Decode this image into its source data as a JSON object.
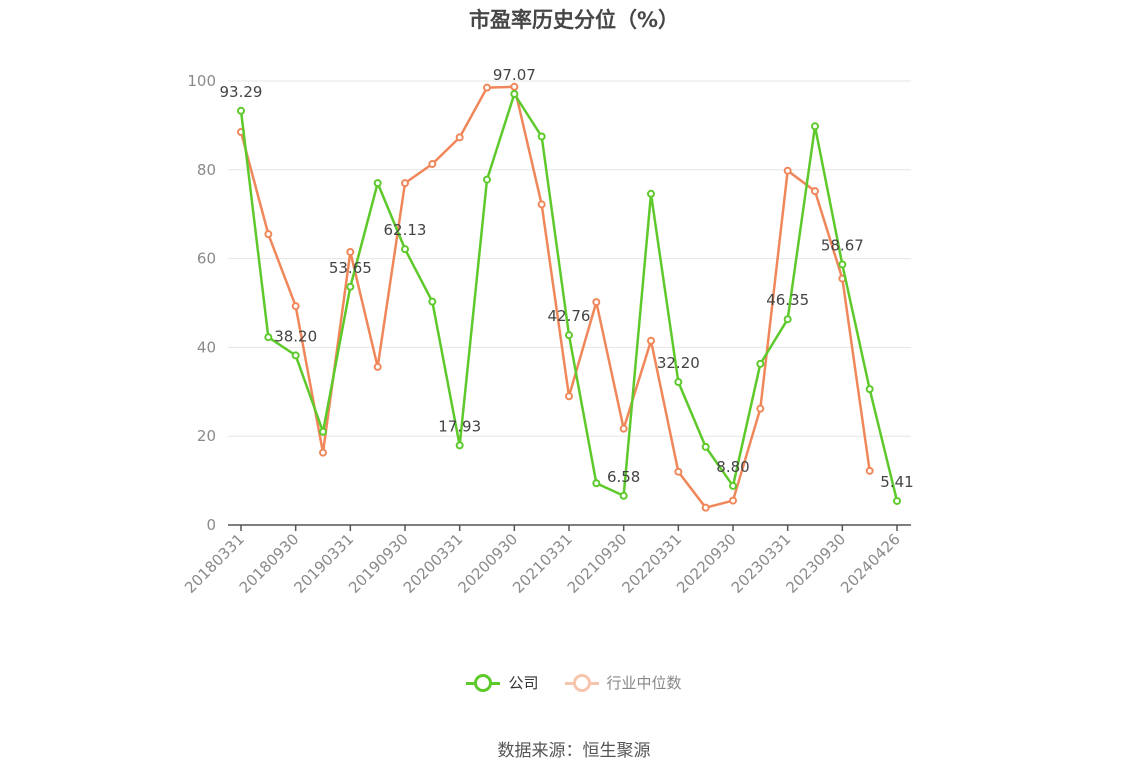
{
  "title": "市盈率历史分位（%）",
  "source": "数据来源：恒生聚源",
  "legend": {
    "company": "公司",
    "industry": "行业中位数"
  },
  "colors": {
    "company": "#5ec92b",
    "industry": "#f0875a",
    "company_legend_text": "#333333",
    "industry_legend_text": "#888888",
    "grid": "#e6e6e6",
    "axis": "#555555",
    "tick_text": "#8a8a8a"
  },
  "chart_data": {
    "type": "line",
    "title": "市盈率历史分位（%）",
    "ylim": [
      0,
      100
    ],
    "yticks": [
      "0",
      "20",
      "40",
      "60",
      "80",
      "100"
    ],
    "xtick_labels": [
      "20180331",
      "20180930",
      "20190331",
      "20190930",
      "20200331",
      "20200930",
      "20210331",
      "20210930",
      "20220331",
      "20220930",
      "20230331",
      "20230930",
      "20240426"
    ],
    "x": [
      "20180331",
      "20180630",
      "20180930",
      "20181231",
      "20190331",
      "20190630",
      "20190930",
      "20191231",
      "20200331",
      "20200630",
      "20200930",
      "20201231",
      "20210331",
      "20210630",
      "20210930",
      "20211231",
      "20220331",
      "20220630",
      "20220930",
      "20221231",
      "20230331",
      "20230630",
      "20230930",
      "20231231",
      "20240426"
    ],
    "grid": true,
    "legend_position": "bottom",
    "series": [
      {
        "name": "公司",
        "values": [
          93.29,
          42.3,
          38.2,
          21.0,
          53.65,
          77.0,
          62.13,
          50.3,
          17.93,
          77.8,
          97.07,
          87.5,
          42.76,
          9.4,
          6.58,
          74.6,
          32.2,
          17.6,
          8.8,
          36.3,
          46.35,
          89.8,
          58.67,
          30.6,
          5.41
        ],
        "data_labels": [
          {
            "index": 0,
            "text": "93.29"
          },
          {
            "index": 2,
            "text": "38.20"
          },
          {
            "index": 4,
            "text": "53.65"
          },
          {
            "index": 6,
            "text": "62.13"
          },
          {
            "index": 8,
            "text": "17.93"
          },
          {
            "index": 10,
            "text": "97.07"
          },
          {
            "index": 12,
            "text": "42.76"
          },
          {
            "index": 14,
            "text": "6.58"
          },
          {
            "index": 16,
            "text": "32.20"
          },
          {
            "index": 18,
            "text": "8.80"
          },
          {
            "index": 20,
            "text": "46.35"
          },
          {
            "index": 22,
            "text": "58.67"
          },
          {
            "index": 24,
            "text": "5.41"
          }
        ]
      },
      {
        "name": "行业中位数",
        "values": [
          88.5,
          65.5,
          49.3,
          16.3,
          61.5,
          35.6,
          77.0,
          81.3,
          87.3,
          98.5,
          98.7,
          72.2,
          29.0,
          50.2,
          21.7,
          41.5,
          12.0,
          3.9,
          5.5,
          26.2,
          79.8,
          75.2,
          55.5,
          12.2,
          null
        ]
      }
    ]
  }
}
